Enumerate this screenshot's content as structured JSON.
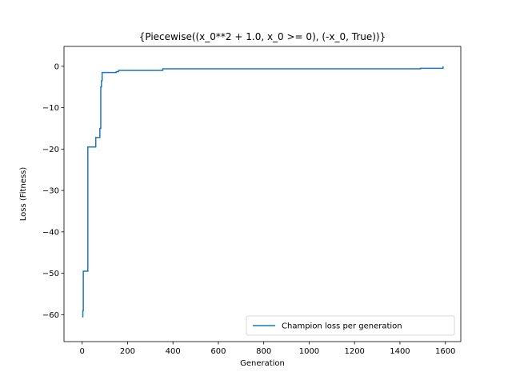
{
  "chart_data": {
    "type": "line",
    "title": "{Piecewise((x_0**2 + 1.0, x_0 >= 0), (-x_0, True))}",
    "xlabel": "Generation",
    "ylabel": "Loss (Fitness)",
    "xlim": [
      -80,
      1668
    ],
    "ylim": [
      -66.5,
      4.8
    ],
    "xticks": [
      0,
      200,
      400,
      600,
      800,
      1000,
      1200,
      1400,
      1600
    ],
    "yticks": [
      -60,
      -50,
      -40,
      -30,
      -20,
      -10,
      0
    ],
    "grid": false,
    "legend_position": "lower-right",
    "step": true,
    "colors": {
      "series": "#1f77b4"
    },
    "series": [
      {
        "name": "Champion loss per generation",
        "x": [
          0,
          3,
          5,
          25,
          60,
          78,
          82,
          85,
          88,
          150,
          160,
          355,
          1490,
          1580,
          1590
        ],
        "y": [
          -60.5,
          -59.0,
          -49.5,
          -19.5,
          -17.2,
          -15.0,
          -5.0,
          -3.5,
          -1.5,
          -1.3,
          -1.0,
          -0.6,
          -0.5,
          -0.5,
          0.0
        ]
      }
    ]
  }
}
